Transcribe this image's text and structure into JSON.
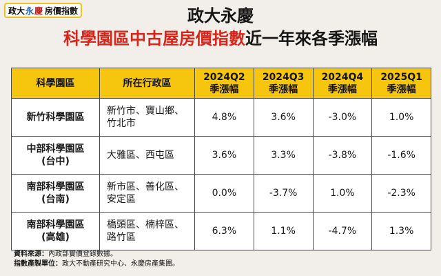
{
  "logo": {
    "part1": "政大",
    "part2": "永",
    "part3": "慶",
    "part4": "房價指數"
  },
  "title": {
    "line1": "政大永慶",
    "line2_highlight": "科學園區中古屋房價指數",
    "line2_rest": "近一年來各季漲幅"
  },
  "table": {
    "headers": [
      {
        "main": "科學園區",
        "sub": ""
      },
      {
        "main": "所在行政區",
        "sub": ""
      },
      {
        "main": "2024Q2",
        "sub": "季漲幅"
      },
      {
        "main": "2024Q3",
        "sub": "季漲幅"
      },
      {
        "main": "2024Q4",
        "sub": "季漲幅"
      },
      {
        "main": "2025Q1",
        "sub": "季漲幅"
      }
    ],
    "rows": [
      {
        "park": "新竹科學園區",
        "park_sub": "",
        "district_1": "新竹市、寶山鄉、",
        "district_2": "竹北市",
        "q2_2024": "4.8%",
        "q3_2024": "3.6%",
        "q4_2024": "-3.0%",
        "q1_2025": "1.0%"
      },
      {
        "park": "中部科學園區",
        "park_sub": "(台中)",
        "district_1": "大雅區、西屯區",
        "district_2": "",
        "q2_2024": "3.6%",
        "q3_2024": "3.3%",
        "q4_2024": "-3.8%",
        "q1_2025": "-1.6%"
      },
      {
        "park": "南部科學園區",
        "park_sub": "(台南)",
        "district_1": "新市區、善化區、",
        "district_2": "安定區",
        "q2_2024": "0.0%",
        "q3_2024": "-3.7%",
        "q4_2024": "1.0%",
        "q1_2025": "-2.3%"
      },
      {
        "park": "南部科學園區",
        "park_sub": "(高雄)",
        "district_1": "橋頭區、楠梓區、",
        "district_2": "路竹區",
        "q2_2024": "6.3%",
        "q3_2024": "1.1%",
        "q4_2024": "-4.7%",
        "q1_2025": "1.3%"
      }
    ]
  },
  "footer": {
    "source_label": "資料來源：",
    "source_text": "內政部實價登錄數據。",
    "producer_label": "指數產製單位：",
    "producer_text": "政大不動產研究中心、永慶房產集團。"
  }
}
